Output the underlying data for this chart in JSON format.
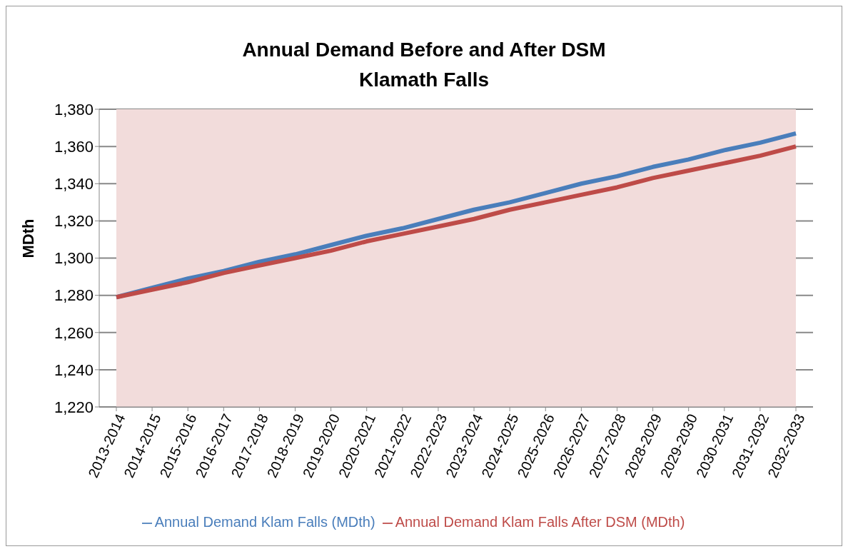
{
  "chart_data": {
    "type": "line",
    "title": "Annual Demand Before and After DSM",
    "subtitle": "Klamath Falls",
    "ylabel": "MDth",
    "categories": [
      "2013-2014",
      "2014-2015",
      "2015-2016",
      "2016-2017",
      "2017-2018",
      "2018-2019",
      "2019-2020",
      "2020-2021",
      "2021-2022",
      "2022-2023",
      "2023-2024",
      "2024-2025",
      "2025-2026",
      "2026-2027",
      "2027-2028",
      "2028-2029",
      "2029-2030",
      "2030-2031",
      "2031-2032",
      "2032-2033"
    ],
    "series": [
      {
        "name": "Annual Demand Klam Falls (MDth)",
        "color": "#4a7ebb",
        "values": [
          1279,
          1284,
          1289,
          1293,
          1298,
          1302,
          1307,
          1312,
          1316,
          1321,
          1326,
          1330,
          1335,
          1340,
          1344,
          1349,
          1353,
          1358,
          1362,
          1367
        ]
      },
      {
        "name": "Annual Demand Klam Falls After DSM (MDth)",
        "color": "#be4b48",
        "values": [
          1279,
          1283,
          1287,
          1292,
          1296,
          1300,
          1304,
          1309,
          1313,
          1317,
          1321,
          1326,
          1330,
          1334,
          1338,
          1343,
          1347,
          1351,
          1355,
          1360
        ]
      }
    ],
    "ylim": [
      1220,
      1380
    ],
    "yticks": [
      {
        "value": 1220,
        "label": "1,220"
      },
      {
        "value": 1240,
        "label": "1,240"
      },
      {
        "value": 1260,
        "label": "1,260"
      },
      {
        "value": 1280,
        "label": "1,280"
      },
      {
        "value": 1300,
        "label": "1,300"
      },
      {
        "value": 1320,
        "label": "1,320"
      },
      {
        "value": 1340,
        "label": "1,340"
      },
      {
        "value": 1360,
        "label": "1,360"
      },
      {
        "value": 1380,
        "label": "1,380"
      }
    ],
    "grid": "y",
    "legend": "bottom",
    "marker": "none"
  }
}
